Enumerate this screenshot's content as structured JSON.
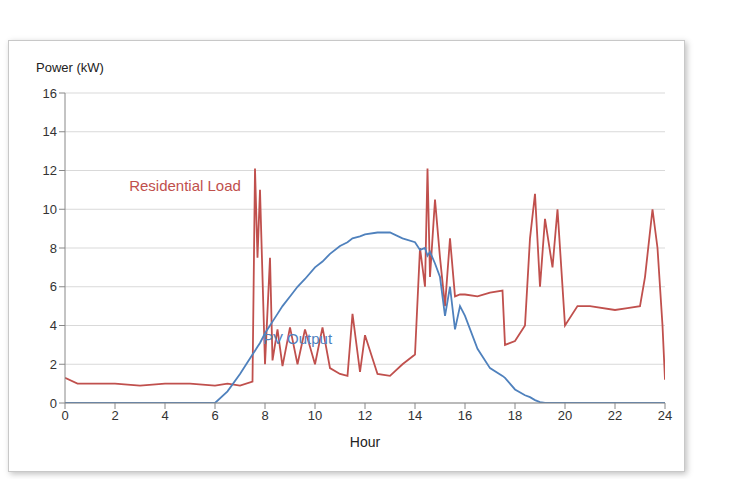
{
  "chart_data": {
    "type": "line",
    "x_label": "Hour",
    "y_label": "Power (kW)",
    "x": [
      0,
      0.5,
      1,
      2,
      3,
      4,
      5,
      6,
      6.5,
      7,
      7.5,
      7.6,
      7.7,
      7.8,
      8,
      8.2,
      8.3,
      8.5,
      8.7,
      9,
      9.3,
      9.6,
      10,
      10.3,
      10.6,
      11,
      11.3,
      11.5,
      11.8,
      12,
      12.5,
      13,
      13.5,
      14,
      14.2,
      14.4,
      14.5,
      14.6,
      14.8,
      15,
      15.2,
      15.4,
      15.6,
      15.8,
      16,
      16.5,
      17,
      17.5,
      17.6,
      18,
      18.4,
      18.6,
      18.8,
      19,
      19.2,
      19.5,
      19.7,
      20,
      20.5,
      21,
      22,
      22.5,
      23,
      23.2,
      23.5,
      23.7,
      23.9,
      24
    ],
    "series": [
      {
        "name": "Residential Load",
        "color": "#c0504d",
        "values": [
          1.3,
          1.0,
          1.0,
          1.0,
          0.9,
          1.0,
          1.0,
          0.9,
          1.0,
          0.9,
          1.1,
          12.1,
          7.5,
          11.0,
          2.0,
          7.5,
          2.2,
          3.8,
          1.9,
          3.9,
          2.0,
          3.8,
          2.0,
          3.9,
          1.8,
          1.5,
          1.4,
          4.6,
          1.6,
          3.5,
          1.5,
          1.4,
          2.0,
          2.5,
          8.0,
          6.0,
          12.1,
          6.5,
          10.5,
          7.5,
          5.0,
          8.5,
          5.5,
          5.6,
          5.6,
          5.5,
          5.7,
          5.8,
          3.0,
          3.2,
          4.0,
          8.5,
          10.8,
          6.0,
          9.5,
          7.0,
          10.0,
          4.0,
          5.0,
          5.0,
          4.8,
          4.9,
          5.0,
          6.5,
          10.0,
          8.0,
          4.0,
          1.2
        ]
      },
      {
        "name": "PV Output",
        "color": "#4f81bd",
        "values": [
          0,
          0,
          0,
          0,
          0,
          0,
          0,
          0,
          0.6,
          1.5,
          2.5,
          2.7,
          2.9,
          3.1,
          3.6,
          4.0,
          4.2,
          4.6,
          5.0,
          5.5,
          6.0,
          6.4,
          7.0,
          7.3,
          7.7,
          8.1,
          8.3,
          8.5,
          8.6,
          8.7,
          8.8,
          8.8,
          8.5,
          8.3,
          7.9,
          8.0,
          7.6,
          7.8,
          7.2,
          6.5,
          4.5,
          6.0,
          3.8,
          5.0,
          4.5,
          2.8,
          1.8,
          1.4,
          1.3,
          0.7,
          0.4,
          0.3,
          0.15,
          0.05,
          0,
          0,
          0,
          0,
          0,
          0,
          0,
          0,
          0,
          0,
          0,
          0,
          0,
          0
        ]
      }
    ],
    "xlim": [
      0,
      24
    ],
    "xticks": [
      0,
      2,
      4,
      6,
      8,
      10,
      12,
      14,
      16,
      18,
      20,
      22,
      24
    ],
    "ylim": [
      0,
      16
    ],
    "yticks": [
      0,
      2,
      4,
      6,
      8,
      10,
      12,
      14,
      16
    ],
    "grid": true
  }
}
